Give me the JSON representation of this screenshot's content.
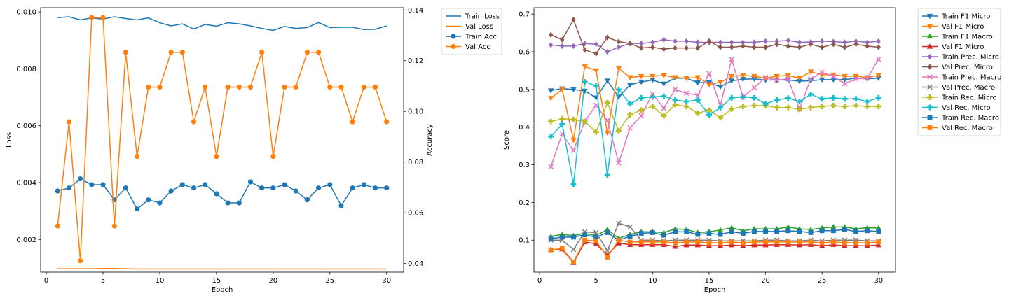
{
  "chart_data": [
    {
      "type": "line",
      "xlabel": "Epoch",
      "ylabel": "Loss",
      "ylabel_right": "Accuracy",
      "xlim": [
        -0.5,
        31.5
      ],
      "ylim": [
        0.00085,
        0.01015
      ],
      "ylim_right": [
        0.0366,
        0.1409
      ],
      "xticks": [
        0,
        5,
        10,
        15,
        20,
        25,
        30
      ],
      "yticks": [
        "0.002",
        "0.004",
        "0.006",
        "0.008",
        "0.010"
      ],
      "yticks_right": [
        "0.04",
        "0.06",
        "0.08",
        "0.10",
        "0.12",
        "0.14"
      ],
      "grid": false,
      "legend_position": "outside-right",
      "x": [
        1,
        2,
        3,
        4,
        5,
        6,
        7,
        8,
        9,
        10,
        11,
        12,
        13,
        14,
        15,
        16,
        17,
        18,
        19,
        20,
        21,
        22,
        23,
        24,
        25,
        26,
        27,
        28,
        29,
        30
      ],
      "series": [
        {
          "name": "Train Loss",
          "axis": "left",
          "color": "#1f77b4",
          "marker": "none",
          "values": [
            0.0098,
            0.00983,
            0.00972,
            0.00979,
            0.00975,
            0.00983,
            0.00977,
            0.00972,
            0.00979,
            0.00962,
            0.00951,
            0.00958,
            0.0094,
            0.00956,
            0.0095,
            0.00962,
            0.00958,
            0.00951,
            0.00942,
            0.00935,
            0.00949,
            0.00942,
            0.00945,
            0.00963,
            0.00945,
            0.00946,
            0.00946,
            0.00938,
            0.00939,
            0.00951
          ]
        },
        {
          "name": "Val Loss",
          "axis": "left",
          "color": "#ff7f0e",
          "marker": "none",
          "values": [
            0.00097,
            0.00097,
            0.00097,
            0.00097,
            0.00098,
            0.00098,
            0.00097,
            0.00096,
            0.00096,
            0.00096,
            0.00096,
            0.00096,
            0.00096,
            0.00096,
            0.00096,
            0.00096,
            0.00096,
            0.00096,
            0.00096,
            0.00096,
            0.00096,
            0.00096,
            0.00096,
            0.00096,
            0.00096,
            0.00096,
            0.00096,
            0.00096,
            0.00096,
            0.00096
          ]
        },
        {
          "name": "Train Acc",
          "axis": "right",
          "color": "#1f77b4",
          "marker": "circle",
          "values": [
            0.0686,
            0.0698,
            0.0734,
            0.0711,
            0.0711,
            0.0651,
            0.0698,
            0.0615,
            0.0651,
            0.0639,
            0.0686,
            0.0711,
            0.0698,
            0.0711,
            0.0675,
            0.0639,
            0.0639,
            0.0722,
            0.0698,
            0.0698,
            0.0711,
            0.0686,
            0.0651,
            0.0698,
            0.0711,
            0.0628,
            0.0698,
            0.0711,
            0.0698,
            0.0698
          ]
        },
        {
          "name": "Val Acc",
          "axis": "right",
          "color": "#ff7f0e",
          "marker": "circle",
          "values": [
            0.0548,
            0.0959,
            0.0411,
            0.137,
            0.137,
            0.0548,
            0.1233,
            0.0822,
            0.1096,
            0.1096,
            0.1233,
            0.1233,
            0.0959,
            0.1096,
            0.0822,
            0.1096,
            0.1096,
            0.1096,
            0.1233,
            0.0822,
            0.1096,
            0.1096,
            0.1233,
            0.1233,
            0.1096,
            0.1096,
            0.0959,
            0.1096,
            0.1096,
            0.0959
          ]
        }
      ],
      "legend": [
        "Train Loss",
        "Val Loss",
        "Train Acc",
        "Val Acc"
      ]
    },
    {
      "type": "line",
      "xlabel": "Epoch",
      "ylabel": "Score",
      "xlim": [
        -0.5,
        31.5
      ],
      "ylim": [
        0.015,
        0.717
      ],
      "xticks": [
        0,
        5,
        10,
        15,
        20,
        25,
        30
      ],
      "yticks": [
        "0.1",
        "0.2",
        "0.3",
        "0.4",
        "0.5",
        "0.6",
        "0.7"
      ],
      "grid": false,
      "legend_position": "outside-right",
      "x": [
        1,
        2,
        3,
        4,
        5,
        6,
        7,
        8,
        9,
        10,
        11,
        12,
        13,
        14,
        15,
        16,
        17,
        18,
        19,
        20,
        21,
        22,
        23,
        24,
        25,
        26,
        27,
        28,
        29,
        30
      ],
      "series": [
        {
          "name": "Train F1 Micro",
          "color": "#1f77b4",
          "marker": "triangle-down",
          "values": [
            0.497,
            0.502,
            0.5,
            0.496,
            0.478,
            0.523,
            0.48,
            0.512,
            0.52,
            0.525,
            0.515,
            0.53,
            0.53,
            0.518,
            0.518,
            0.507,
            0.523,
            0.527,
            0.528,
            0.525,
            0.525,
            0.525,
            0.522,
            0.523,
            0.526,
            0.526,
            0.526,
            0.53,
            0.528,
            0.53
          ]
        },
        {
          "name": "Val F1 Micro",
          "color": "#ff7f0e",
          "marker": "triangle-down",
          "values": [
            0.477,
            0.5,
            0.365,
            0.561,
            0.55,
            0.385,
            0.556,
            0.532,
            0.535,
            0.535,
            0.537,
            0.532,
            0.53,
            0.532,
            0.513,
            0.519,
            0.535,
            0.537,
            0.535,
            0.53,
            0.535,
            0.537,
            0.53,
            0.547,
            0.539,
            0.539,
            0.535,
            0.535,
            0.532,
            0.537
          ]
        },
        {
          "name": "Train F1 Macro",
          "color": "#2ca02c",
          "marker": "triangle-up",
          "values": [
            0.11,
            0.115,
            0.112,
            0.118,
            0.112,
            0.128,
            0.105,
            0.115,
            0.122,
            0.122,
            0.12,
            0.13,
            0.128,
            0.12,
            0.122,
            0.127,
            0.133,
            0.125,
            0.13,
            0.13,
            0.13,
            0.135,
            0.13,
            0.128,
            0.132,
            0.135,
            0.135,
            0.13,
            0.133,
            0.132
          ]
        },
        {
          "name": "Val F1 Micro",
          "color": "#d62728",
          "marker": "triangle-up",
          "values": [
            0.075,
            0.076,
            0.04,
            0.095,
            0.09,
            0.06,
            0.092,
            0.088,
            0.088,
            0.088,
            0.088,
            0.083,
            0.087,
            0.087,
            0.085,
            0.085,
            0.087,
            0.085,
            0.087,
            0.087,
            0.088,
            0.088,
            0.087,
            0.088,
            0.085,
            0.088,
            0.085,
            0.085,
            0.085,
            0.087
          ]
        },
        {
          "name": "Train Prec. Micro",
          "color": "#9467bd",
          "marker": "diamond",
          "values": [
            0.618,
            0.615,
            0.615,
            0.622,
            0.62,
            0.6,
            0.612,
            0.622,
            0.622,
            0.625,
            0.632,
            0.628,
            0.628,
            0.625,
            0.625,
            0.625,
            0.625,
            0.625,
            0.625,
            0.628,
            0.628,
            0.63,
            0.625,
            0.626,
            0.628,
            0.627,
            0.625,
            0.628,
            0.625,
            0.628
          ]
        },
        {
          "name": "Val Prec. Micro",
          "color": "#8c564b",
          "marker": "diamond",
          "values": [
            0.645,
            0.632,
            0.685,
            0.605,
            0.595,
            0.638,
            0.627,
            0.622,
            0.61,
            0.612,
            0.607,
            0.61,
            0.61,
            0.61,
            0.628,
            0.612,
            0.612,
            0.615,
            0.612,
            0.612,
            0.62,
            0.615,
            0.612,
            0.62,
            0.612,
            0.62,
            0.612,
            0.62,
            0.615,
            0.612
          ]
        },
        {
          "name": "Train Prec. Macro",
          "color": "#e377c2",
          "marker": "x",
          "values": [
            0.295,
            0.382,
            0.338,
            0.415,
            0.458,
            0.418,
            0.305,
            0.398,
            0.43,
            0.488,
            0.45,
            0.5,
            0.49,
            0.485,
            0.542,
            0.458,
            0.58,
            0.48,
            0.505,
            0.532,
            0.525,
            0.528,
            0.448,
            0.528,
            0.545,
            0.535,
            0.515,
            0.528,
            0.53,
            0.58
          ]
        },
        {
          "name": "Val Prec. Macro",
          "color": "#7f7f7f",
          "marker": "x",
          "values": [
            0.1,
            0.1,
            0.075,
            0.122,
            0.12,
            0.072,
            0.145,
            0.135,
            0.1,
            0.1,
            0.098,
            0.1,
            0.1,
            0.1,
            0.1,
            0.098,
            0.098,
            0.098,
            0.098,
            0.1,
            0.1,
            0.098,
            0.098,
            0.1,
            0.098,
            0.1,
            0.1,
            0.1,
            0.098,
            0.098
          ]
        },
        {
          "name": "Train Rec. Micro",
          "color": "#bcbd22",
          "marker": "plus",
          "values": [
            0.415,
            0.422,
            0.42,
            0.415,
            0.387,
            0.465,
            0.39,
            0.433,
            0.445,
            0.455,
            0.43,
            0.46,
            0.455,
            0.437,
            0.445,
            0.425,
            0.448,
            0.455,
            0.457,
            0.457,
            0.452,
            0.452,
            0.447,
            0.452,
            0.455,
            0.457,
            0.455,
            0.457,
            0.455,
            0.455
          ]
        },
        {
          "name": "Val Rec. Micro",
          "color": "#17becf",
          "marker": "plus",
          "values": [
            0.375,
            0.408,
            0.248,
            0.52,
            0.51,
            0.273,
            0.5,
            0.462,
            0.478,
            0.48,
            0.482,
            0.472,
            0.468,
            0.472,
            0.432,
            0.452,
            0.478,
            0.48,
            0.478,
            0.462,
            0.472,
            0.477,
            0.468,
            0.487,
            0.475,
            0.478,
            0.475,
            0.475,
            0.468,
            0.478
          ]
        },
        {
          "name": "Train Rec. Macro",
          "color": "#1f77b4",
          "marker": "square",
          "values": [
            0.104,
            0.108,
            0.108,
            0.114,
            0.108,
            0.12,
            0.1,
            0.11,
            0.118,
            0.12,
            0.113,
            0.122,
            0.122,
            0.115,
            0.118,
            0.115,
            0.122,
            0.118,
            0.123,
            0.123,
            0.123,
            0.125,
            0.123,
            0.12,
            0.125,
            0.125,
            0.128,
            0.123,
            0.125,
            0.123
          ]
        },
        {
          "name": "Val Rec. Macro",
          "color": "#ff7f0e",
          "marker": "square",
          "values": [
            0.074,
            0.078,
            0.042,
            0.1,
            0.098,
            0.055,
            0.1,
            0.095,
            0.095,
            0.095,
            0.095,
            0.093,
            0.095,
            0.095,
            0.093,
            0.093,
            0.095,
            0.093,
            0.095,
            0.095,
            0.095,
            0.095,
            0.095,
            0.095,
            0.093,
            0.095,
            0.093,
            0.093,
            0.093,
            0.095
          ]
        }
      ],
      "legend": [
        "Train F1 Micro",
        "Val F1 Micro",
        "Train F1 Macro",
        "Val F1 Micro",
        "Train Prec. Micro",
        "Val Prec. Micro",
        "Train Prec. Macro",
        "Val Prec. Macro",
        "Train Rec. Micro",
        "Val Rec. Micro",
        "Train Rec. Macro",
        "Val Rec. Macro"
      ]
    }
  ]
}
